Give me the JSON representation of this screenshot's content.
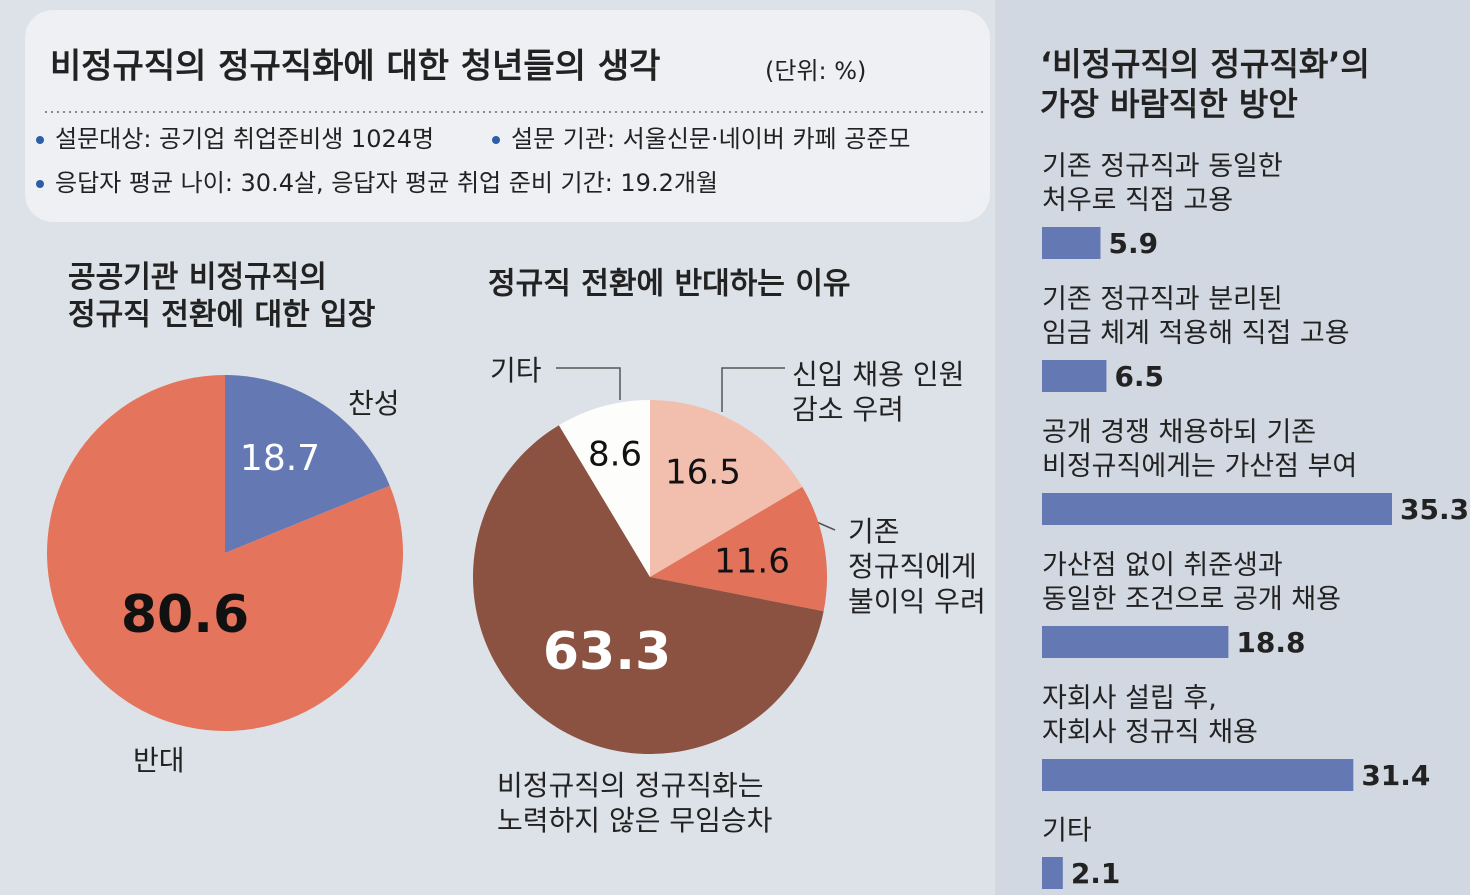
{
  "header": {
    "title": "비정규직의 정규직화에 대한 청년들의 생각",
    "unit": "(단위: %)",
    "notes": [
      "설문대상: 공기업 취업준비생 1024명",
      "설문 기관: 서울신문·네이버 카페 공준모",
      "응답자 평균 나이: 30.4살, 응답자 평균 취업 준비 기간: 19.2개월"
    ]
  },
  "chart_data": [
    {
      "type": "pie",
      "title": "공공기관 비정규직의\n정규직 전환에 대한 입장",
      "categories": [
        "찬성",
        "반대"
      ],
      "values": [
        18.7,
        80.6
      ],
      "colors": [
        "#6479b3",
        "#e4745c"
      ]
    },
    {
      "type": "pie",
      "title": "정규직 전환에 반대하는 이유",
      "categories": [
        "신입 채용 인원\n감소 우려",
        "기존\n정규직에게\n불이익 우려",
        "비정규직의 정규직화는\n노력하지 않은 무임승차",
        "기타"
      ],
      "values": [
        16.5,
        11.6,
        63.3,
        8.6
      ],
      "colors": [
        "#f2bfae",
        "#e2725a",
        "#8b5242",
        "#fdfdfb"
      ]
    },
    {
      "type": "bar",
      "orientation": "horizontal",
      "title": "‘비정규직의 정규직화’의\n가장 바람직한 방안",
      "categories": [
        "기존 정규직과 동일한\n처우로 직접 고용",
        "기존 정규직과 분리된\n임금 체계 적용해 직접 고용",
        "공개 경쟁 채용하되 기존\n비정규직에게는 가산점 부여",
        "가산점 없이 취준생과\n동일한 조건으로 공개 채용",
        "자회사 설립 후,\n자회사 정규직 채용",
        "기타"
      ],
      "values": [
        5.9,
        6.5,
        35.3,
        18.8,
        31.4,
        2.1
      ],
      "color": "#6479b3"
    }
  ]
}
